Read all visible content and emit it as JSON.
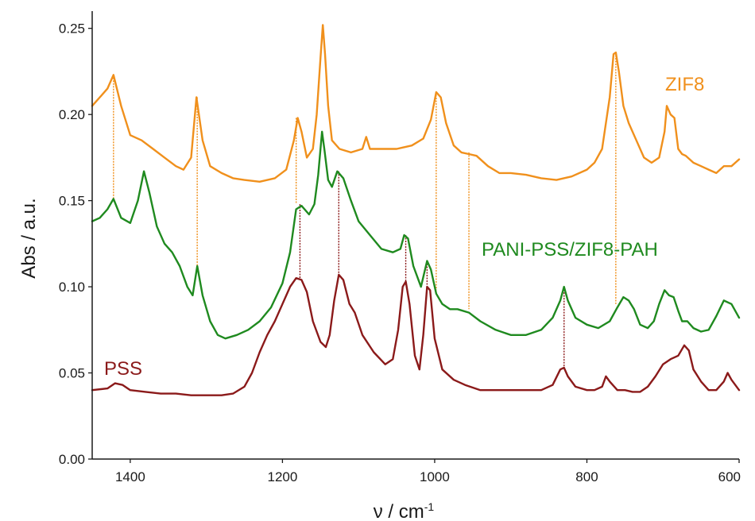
{
  "chart_data": {
    "type": "line",
    "xlabel": "ν / cm",
    "xlabel_superscript": "-1",
    "ylabel": "Abs / a.u.",
    "xlim": [
      1450,
      600
    ],
    "ylim": [
      0,
      0.26
    ],
    "x_reversed": true,
    "grid": false,
    "x_ticks": [
      1400,
      1200,
      1000,
      800,
      600
    ],
    "x_tick_labels": [
      "1400",
      "1200",
      "1000",
      "800",
      "600"
    ],
    "y_ticks": [
      0,
      0.05,
      0.1,
      0.15,
      0.2,
      0.25
    ],
    "y_tick_labels": [
      "0.00",
      "0.05",
      "0.10",
      "0.15",
      "0.20",
      "0.25"
    ],
    "series": [
      {
        "name": "ZIF8",
        "color": "#f0901c",
        "x": [
          1450,
          1440,
          1430,
          1422,
          1412,
          1400,
          1385,
          1370,
          1355,
          1340,
          1330,
          1320,
          1313,
          1305,
          1295,
          1280,
          1265,
          1250,
          1230,
          1210,
          1195,
          1185,
          1180,
          1175,
          1168,
          1160,
          1155,
          1150,
          1147,
          1144,
          1140,
          1135,
          1125,
          1110,
          1095,
          1090,
          1085,
          1070,
          1050,
          1030,
          1015,
          1005,
          998,
          992,
          985,
          975,
          965,
          955,
          945,
          930,
          915,
          900,
          880,
          860,
          840,
          820,
          800,
          790,
          780,
          770,
          765,
          762,
          758,
          752,
          745,
          735,
          725,
          715,
          705,
          698,
          695,
          690,
          685,
          680,
          675,
          670,
          660,
          650,
          640,
          630,
          620,
          610,
          600
        ],
        "y": [
          0.205,
          0.21,
          0.215,
          0.223,
          0.205,
          0.188,
          0.185,
          0.18,
          0.175,
          0.17,
          0.168,
          0.175,
          0.21,
          0.185,
          0.17,
          0.166,
          0.163,
          0.162,
          0.161,
          0.163,
          0.168,
          0.185,
          0.198,
          0.19,
          0.175,
          0.18,
          0.2,
          0.233,
          0.252,
          0.235,
          0.205,
          0.185,
          0.18,
          0.178,
          0.18,
          0.187,
          0.18,
          0.18,
          0.18,
          0.182,
          0.186,
          0.197,
          0.213,
          0.21,
          0.195,
          0.182,
          0.178,
          0.177,
          0.176,
          0.17,
          0.166,
          0.166,
          0.165,
          0.163,
          0.162,
          0.164,
          0.168,
          0.172,
          0.18,
          0.21,
          0.235,
          0.236,
          0.225,
          0.205,
          0.195,
          0.185,
          0.175,
          0.172,
          0.175,
          0.19,
          0.205,
          0.2,
          0.198,
          0.18,
          0.177,
          0.176,
          0.172,
          0.17,
          0.168,
          0.166,
          0.17,
          0.17,
          0.174
        ]
      },
      {
        "name": "PANI-PSS/ZIF8-PAH",
        "color": "#1f8a1f",
        "x": [
          1450,
          1440,
          1430,
          1422,
          1412,
          1400,
          1390,
          1382,
          1375,
          1365,
          1355,
          1345,
          1335,
          1325,
          1318,
          1312,
          1305,
          1295,
          1285,
          1275,
          1260,
          1245,
          1230,
          1215,
          1200,
          1190,
          1182,
          1175,
          1165,
          1158,
          1153,
          1148,
          1145,
          1140,
          1135,
          1128,
          1120,
          1110,
          1100,
          1085,
          1070,
          1055,
          1045,
          1040,
          1035,
          1028,
          1018,
          1010,
          1005,
          998,
          990,
          980,
          970,
          955,
          940,
          920,
          900,
          880,
          860,
          845,
          835,
          830,
          825,
          815,
          800,
          785,
          770,
          760,
          752,
          745,
          738,
          730,
          720,
          712,
          705,
          698,
          692,
          686,
          680,
          675,
          668,
          660,
          650,
          640,
          630,
          620,
          610,
          600
        ],
        "y": [
          0.138,
          0.14,
          0.145,
          0.151,
          0.14,
          0.137,
          0.15,
          0.167,
          0.155,
          0.135,
          0.125,
          0.12,
          0.112,
          0.1,
          0.095,
          0.112,
          0.095,
          0.08,
          0.072,
          0.07,
          0.072,
          0.075,
          0.08,
          0.088,
          0.102,
          0.12,
          0.145,
          0.147,
          0.142,
          0.148,
          0.165,
          0.19,
          0.18,
          0.162,
          0.158,
          0.167,
          0.163,
          0.15,
          0.138,
          0.13,
          0.122,
          0.12,
          0.122,
          0.13,
          0.128,
          0.112,
          0.1,
          0.115,
          0.11,
          0.096,
          0.09,
          0.087,
          0.087,
          0.085,
          0.08,
          0.075,
          0.072,
          0.072,
          0.075,
          0.082,
          0.092,
          0.1,
          0.092,
          0.082,
          0.078,
          0.076,
          0.08,
          0.088,
          0.094,
          0.092,
          0.087,
          0.078,
          0.076,
          0.08,
          0.09,
          0.098,
          0.095,
          0.094,
          0.086,
          0.08,
          0.08,
          0.076,
          0.074,
          0.075,
          0.083,
          0.092,
          0.09,
          0.082
        ]
      },
      {
        "name": "PSS",
        "color": "#8b1a1a",
        "x": [
          1450,
          1430,
          1420,
          1410,
          1400,
          1380,
          1360,
          1340,
          1320,
          1300,
          1280,
          1265,
          1250,
          1240,
          1230,
          1220,
          1210,
          1200,
          1190,
          1182,
          1175,
          1168,
          1160,
          1150,
          1143,
          1138,
          1132,
          1126,
          1120,
          1112,
          1105,
          1095,
          1080,
          1065,
          1055,
          1048,
          1042,
          1038,
          1033,
          1026,
          1020,
          1015,
          1010,
          1006,
          1000,
          990,
          975,
          960,
          940,
          920,
          900,
          880,
          860,
          845,
          835,
          830,
          825,
          815,
          800,
          790,
          780,
          775,
          770,
          760,
          750,
          740,
          730,
          720,
          710,
          700,
          690,
          680,
          672,
          666,
          660,
          650,
          640,
          630,
          620,
          615,
          610,
          600
        ],
        "y": [
          0.04,
          0.041,
          0.044,
          0.043,
          0.04,
          0.039,
          0.038,
          0.038,
          0.037,
          0.037,
          0.037,
          0.038,
          0.042,
          0.05,
          0.062,
          0.072,
          0.08,
          0.09,
          0.1,
          0.105,
          0.104,
          0.097,
          0.08,
          0.068,
          0.065,
          0.072,
          0.092,
          0.107,
          0.104,
          0.09,
          0.085,
          0.072,
          0.062,
          0.055,
          0.058,
          0.075,
          0.1,
          0.103,
          0.09,
          0.06,
          0.052,
          0.072,
          0.1,
          0.098,
          0.07,
          0.052,
          0.046,
          0.043,
          0.04,
          0.04,
          0.04,
          0.04,
          0.04,
          0.043,
          0.052,
          0.053,
          0.048,
          0.042,
          0.04,
          0.04,
          0.042,
          0.048,
          0.045,
          0.04,
          0.04,
          0.039,
          0.039,
          0.042,
          0.048,
          0.055,
          0.058,
          0.06,
          0.066,
          0.063,
          0.052,
          0.045,
          0.04,
          0.04,
          0.045,
          0.05,
          0.046,
          0.04
        ]
      }
    ],
    "guide_lines": [
      {
        "color": "#f0901c",
        "x": 1422,
        "y_top": 0.223,
        "y_bottom": 0.151
      },
      {
        "color": "#f0901c",
        "x": 1312,
        "y_top": 0.21,
        "y_bottom": 0.112
      },
      {
        "color": "#f0901c",
        "x": 1182,
        "y_top": 0.198,
        "y_bottom": 0.148
      },
      {
        "color": "#f0901c",
        "x": 998,
        "y_top": 0.213,
        "y_bottom": 0.098
      },
      {
        "color": "#f0901c",
        "x": 955,
        "y_top": 0.178,
        "y_bottom": 0.087
      },
      {
        "color": "#f0901c",
        "x": 762,
        "y_top": 0.236,
        "y_bottom": 0.09
      },
      {
        "color": "#8b1a1a",
        "x": 1177,
        "y_top": 0.148,
        "y_bottom": 0.105
      },
      {
        "color": "#8b1a1a",
        "x": 1126,
        "y_top": 0.167,
        "y_bottom": 0.107
      },
      {
        "color": "#8b1a1a",
        "x": 1038,
        "y_top": 0.13,
        "y_bottom": 0.103
      },
      {
        "color": "#8b1a1a",
        "x": 1010,
        "y_top": 0.115,
        "y_bottom": 0.1
      },
      {
        "color": "#8b1a1a",
        "x": 830,
        "y_top": 0.1,
        "y_bottom": 0.053
      }
    ],
    "annotations": {
      "zif8": "ZIF8",
      "pani": "PANI-PSS/ZIF8-PAH",
      "pss": "PSS"
    }
  }
}
